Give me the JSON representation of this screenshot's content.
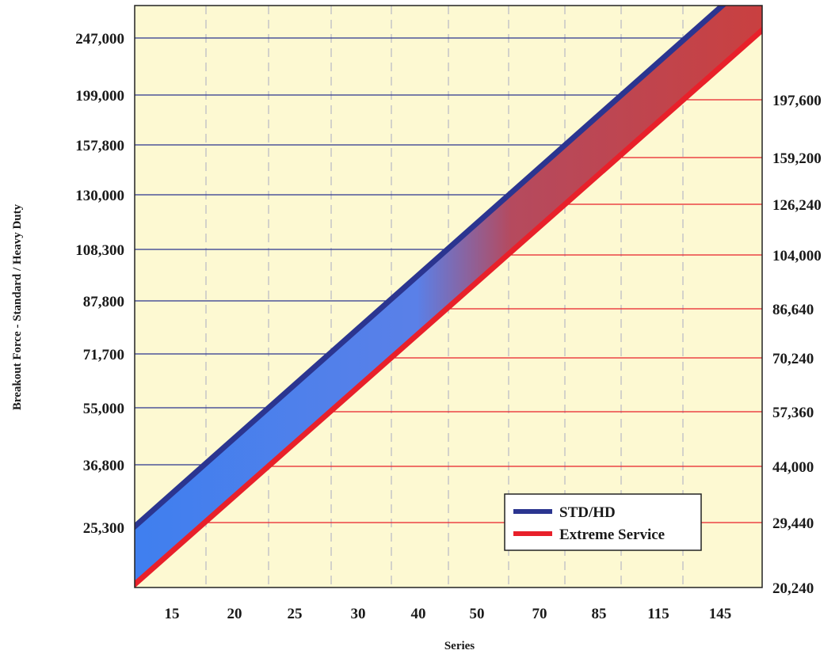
{
  "chart_data": {
    "type": "line",
    "title": "",
    "xlabel": "Series",
    "ylabel": "Breakout Force - Standard / Heavy Duty",
    "categories": [
      "15",
      "20",
      "25",
      "30",
      "40",
      "50",
      "70",
      "85",
      "115",
      "145"
    ],
    "left_axis_ticks": [
      "25,300",
      "36,800",
      "55,000",
      "71,700",
      "87,800",
      "108,300",
      "130,000",
      "157,800",
      "199,000",
      "247,000"
    ],
    "right_axis_ticks": [
      "20,240",
      "29,440",
      "44,000",
      "57,360",
      "70,240",
      "86,640",
      "104,000",
      "126,240",
      "159,200",
      "197,600"
    ],
    "series": [
      {
        "name": "STD/HD",
        "values": [
          25300,
          36800,
          55000,
          71700,
          87800,
          108300,
          130000,
          157800,
          199000,
          247000
        ]
      },
      {
        "name": "Extreme Service",
        "values": [
          20240,
          29440,
          44000,
          57360,
          70240,
          86640,
          104000,
          126240,
          159200,
          197600
        ]
      }
    ],
    "legend": {
      "position": "bottom-right",
      "items": [
        {
          "label": "STD/HD",
          "color": "#2b3590"
        },
        {
          "label": "Extreme Service",
          "color": "#e8202a"
        }
      ]
    },
    "grid": true,
    "colors": {
      "background": "#fdf9d2",
      "std": "#2b3590",
      "extreme": "#e8202a",
      "band_light": "#3f7fef",
      "band_dark": "#c94040"
    }
  }
}
